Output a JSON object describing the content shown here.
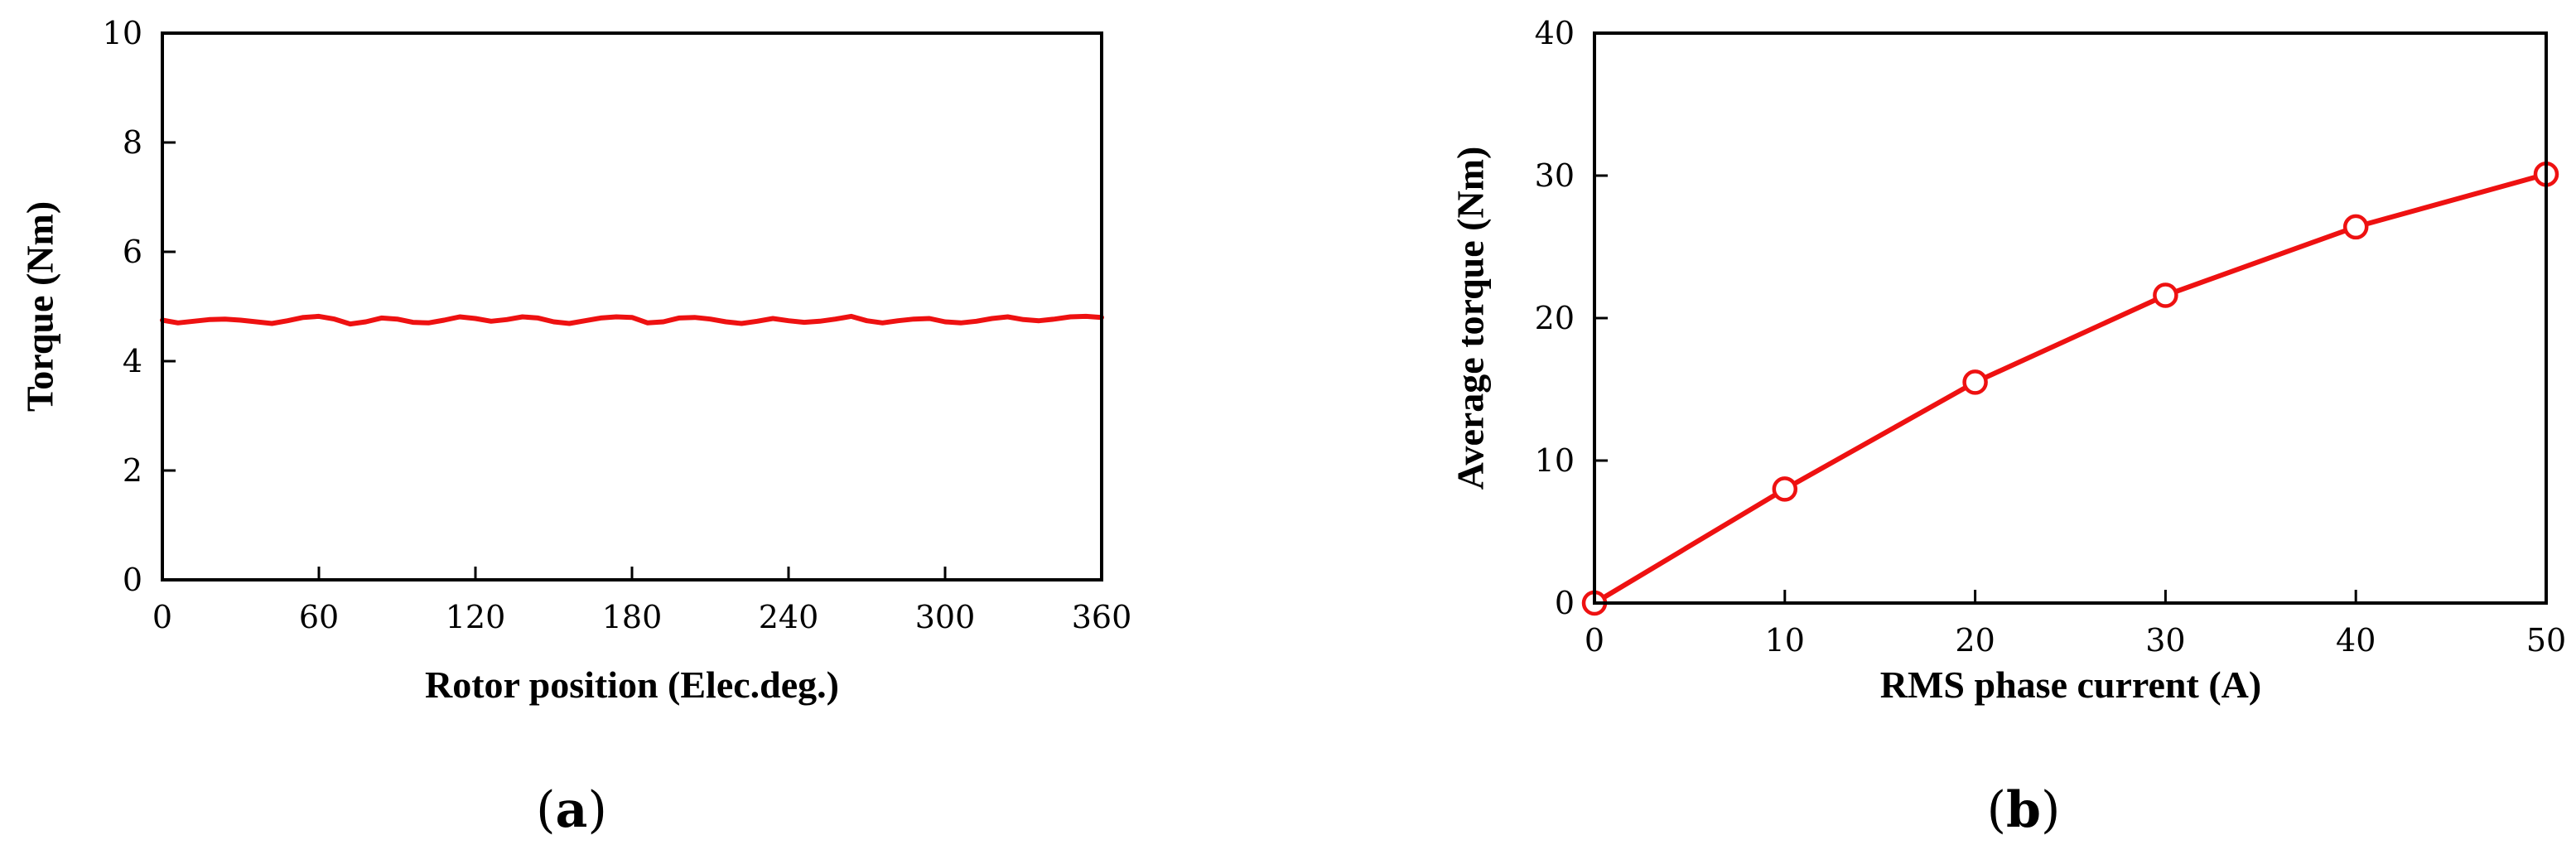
{
  "colors": {
    "series": "#ee1111",
    "axis": "#000000",
    "background": "#ffffff"
  },
  "chart_data": [
    {
      "panel": "(a)",
      "type": "line",
      "title": "",
      "xlabel": "Rotor position (Elec.deg.)",
      "ylabel": "Torque (Nm)",
      "xlim": [
        0,
        360
      ],
      "ylim": [
        0,
        10
      ],
      "xticks": [
        0,
        60,
        120,
        180,
        240,
        300,
        360
      ],
      "yticks": [
        0,
        2,
        4,
        6,
        8,
        10
      ],
      "grid": false,
      "legend": "none",
      "series": [
        {
          "x": [
            0,
            6,
            12,
            18,
            24,
            30,
            36,
            42,
            48,
            54,
            60,
            66,
            72,
            78,
            84,
            90,
            96,
            102,
            108,
            114,
            120,
            126,
            132,
            138,
            144,
            150,
            156,
            162,
            168,
            174,
            180,
            186,
            192,
            198,
            204,
            210,
            216,
            222,
            228,
            234,
            240,
            246,
            252,
            258,
            264,
            270,
            276,
            282,
            288,
            294,
            300,
            306,
            312,
            318,
            324,
            330,
            336,
            342,
            348,
            354,
            360
          ],
          "y": [
            4.75,
            4.7,
            4.73,
            4.76,
            4.77,
            4.75,
            4.72,
            4.69,
            4.74,
            4.8,
            4.82,
            4.77,
            4.68,
            4.72,
            4.79,
            4.77,
            4.71,
            4.7,
            4.75,
            4.81,
            4.78,
            4.73,
            4.76,
            4.81,
            4.79,
            4.72,
            4.69,
            4.74,
            4.79,
            4.81,
            4.8,
            4.7,
            4.72,
            4.79,
            4.8,
            4.77,
            4.72,
            4.69,
            4.73,
            4.78,
            4.74,
            4.71,
            4.73,
            4.77,
            4.82,
            4.74,
            4.7,
            4.74,
            4.77,
            4.78,
            4.72,
            4.7,
            4.73,
            4.78,
            4.81,
            4.76,
            4.74,
            4.77,
            4.81,
            4.82,
            4.8
          ]
        }
      ]
    },
    {
      "panel": "(b)",
      "type": "line",
      "title": "",
      "xlabel": "RMS phase current (A)",
      "ylabel": "Average torque (Nm)",
      "xlim": [
        0,
        50
      ],
      "ylim": [
        0,
        40
      ],
      "xticks": [
        0,
        10,
        20,
        30,
        40,
        50
      ],
      "yticks": [
        0,
        10,
        20,
        30,
        40
      ],
      "grid": false,
      "legend": "none",
      "markers": "open-circle",
      "series": [
        {
          "x": [
            0,
            10,
            20,
            30,
            40,
            50
          ],
          "y": [
            0,
            8.0,
            15.5,
            21.6,
            26.4,
            30.1
          ]
        }
      ]
    }
  ],
  "panel_labels": {
    "a_open": "(",
    "a_letter": "a",
    "a_close": ")",
    "b_open": "(",
    "b_letter": "b",
    "b_close": ")"
  }
}
